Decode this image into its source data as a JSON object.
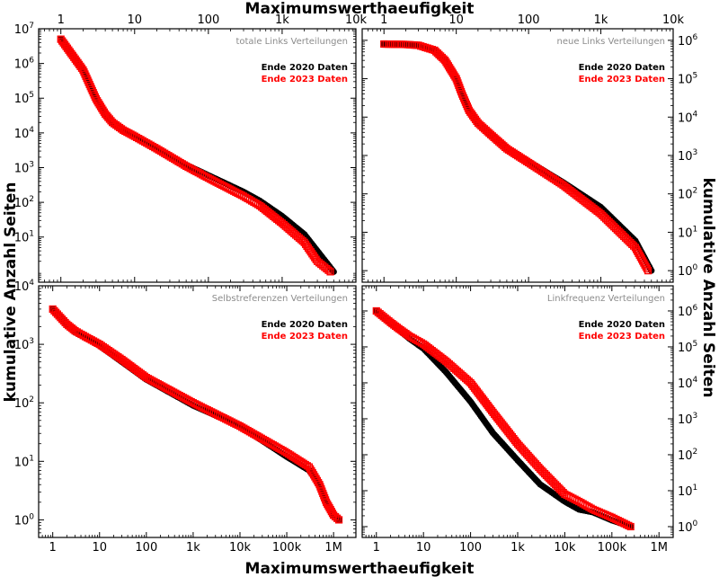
{
  "figure": {
    "x_axis_title_top": "Maximumswerthaeufigkeit",
    "x_axis_title_bottom": "Maximumswerthaeufigkeit",
    "y_axis_title_left": "kumulative Anzahl Seiten",
    "y_axis_title_right": "kumulative Anzahl Seiten",
    "colors": {
      "series_2020": "#000000",
      "series_2023": "#ff0000",
      "panel_title": "#8c8c8c"
    }
  },
  "chart_data": [
    {
      "type": "scatter",
      "title": "totale Links Verteilungen",
      "x_scale": "log",
      "y_scale": "log",
      "xlim": [
        0.5,
        10000
      ],
      "ylim": [
        0.5,
        10000000
      ],
      "x_ticks": [
        "1",
        "10",
        "100",
        "1k",
        "10k"
      ],
      "y_ticks": [
        "10^1",
        "10^2",
        "10^3",
        "10^4",
        "10^5",
        "10^6",
        "10^7"
      ],
      "legend": "top-right",
      "series": [
        {
          "name": "Ende 2020 Daten",
          "color": "#000000",
          "marker": "circle",
          "x": [
            1,
            2,
            3,
            4,
            5,
            7,
            10,
            20,
            50,
            100,
            300,
            500,
            1000,
            2000,
            3000,
            5000
          ],
          "y": [
            5000000,
            700000,
            100000,
            35000,
            20000,
            12000,
            8000,
            3500,
            1200,
            600,
            200,
            110,
            40,
            12,
            4,
            1
          ]
        },
        {
          "name": "Ende 2023 Daten",
          "color": "#ff0000",
          "marker": "square",
          "x": [
            1,
            2,
            3,
            4,
            5,
            7,
            10,
            20,
            50,
            100,
            300,
            500,
            1000,
            2000,
            3000,
            4500
          ],
          "y": [
            5000000,
            650000,
            95000,
            35000,
            20000,
            12000,
            8000,
            3500,
            1100,
            500,
            150,
            80,
            25,
            7,
            2,
            1
          ]
        }
      ]
    },
    {
      "type": "scatter",
      "title": "neue Links Verteilungen",
      "x_scale": "log",
      "y_scale": "log",
      "xlim": [
        0.5,
        10000
      ],
      "ylim": [
        0.5,
        2000000
      ],
      "x_ticks": [
        "1",
        "10",
        "100",
        "1k",
        "10k"
      ],
      "y_ticks": [
        "10^0",
        "10^1",
        "10^2",
        "10^3",
        "10^4",
        "10^5",
        "10^6"
      ],
      "legend": "top-right",
      "series": [
        {
          "name": "Ende 2020 Daten",
          "color": "#000000",
          "marker": "circle",
          "x": [
            1,
            2,
            3,
            5,
            7,
            10,
            12,
            15,
            20,
            30,
            50,
            100,
            300,
            1000,
            3000,
            5000
          ],
          "y": [
            800000,
            780000,
            740000,
            550000,
            300000,
            100000,
            40000,
            15000,
            7000,
            3500,
            1600,
            700,
            200,
            45,
            6,
            1
          ]
        },
        {
          "name": "Ende 2023 Daten",
          "color": "#ff0000",
          "marker": "square",
          "x": [
            1,
            2,
            3,
            5,
            7,
            10,
            12,
            15,
            20,
            30,
            50,
            100,
            300,
            1000,
            3000,
            4500
          ],
          "y": [
            800000,
            780000,
            740000,
            550000,
            300000,
            100000,
            40000,
            15000,
            7000,
            3500,
            1500,
            650,
            170,
            30,
            4,
            1
          ]
        }
      ]
    },
    {
      "type": "scatter",
      "title": "Selbstreferenzen Verteilungen",
      "x_scale": "log",
      "y_scale": "log",
      "xlim": [
        0.5,
        3000000
      ],
      "ylim": [
        0.5,
        10000
      ],
      "x_ticks": [
        "1",
        "10",
        "100",
        "1k",
        "10k",
        "100k",
        "1M"
      ],
      "y_ticks": [
        "10^0",
        "10^1",
        "10^2",
        "10^3",
        "10^4"
      ],
      "legend": "top-right",
      "series": [
        {
          "name": "Ende 2020 Daten",
          "color": "#000000",
          "marker": "circle",
          "x": [
            1,
            2,
            3,
            5,
            10,
            30,
            100,
            1000,
            10000,
            100000,
            300000,
            500000,
            700000,
            1000000,
            1300000
          ],
          "y": [
            4000,
            2200,
            1600,
            1300,
            950,
            500,
            250,
            90,
            40,
            12,
            7,
            4,
            2,
            1.2,
            1
          ]
        },
        {
          "name": "Ende 2023 Daten",
          "color": "#ff0000",
          "marker": "square",
          "x": [
            1,
            2,
            3,
            5,
            10,
            30,
            100,
            1000,
            10000,
            100000,
            300000,
            500000,
            700000,
            1000000,
            1300000
          ],
          "y": [
            4000,
            2200,
            1700,
            1350,
            1000,
            550,
            270,
            100,
            40,
            14,
            8,
            4,
            2,
            1.2,
            1
          ]
        }
      ]
    },
    {
      "type": "scatter",
      "title": "Linkfrequenz Verteilungen",
      "x_scale": "log",
      "y_scale": "log",
      "xlim": [
        0.5,
        2000000
      ],
      "ylim": [
        0.5,
        5000000
      ],
      "x_ticks": [
        "1",
        "10",
        "100",
        "1k",
        "10k",
        "100k",
        "1M"
      ],
      "y_ticks": [
        "10^0",
        "10^1",
        "10^2",
        "10^3",
        "10^4",
        "10^5",
        "10^6"
      ],
      "legend": "top-right",
      "series": [
        {
          "name": "Ende 2020 Daten",
          "color": "#000000",
          "marker": "circle",
          "x": [
            1,
            2,
            3,
            5,
            10,
            30,
            100,
            300,
            1000,
            3000,
            10000,
            20000,
            40000,
            100000,
            250000
          ],
          "y": [
            1000000,
            450000,
            300000,
            170000,
            90000,
            20000,
            3000,
            400,
            70,
            15,
            5,
            3,
            2.5,
            1.5,
            1
          ]
        },
        {
          "name": "Ende 2023 Daten",
          "color": "#ff0000",
          "marker": "square",
          "x": [
            1,
            2,
            3,
            5,
            10,
            30,
            100,
            300,
            1000,
            3000,
            10000,
            20000,
            40000,
            100000,
            250000
          ],
          "y": [
            1000000,
            480000,
            320000,
            200000,
            120000,
            40000,
            10000,
            1500,
            200,
            40,
            8,
            5,
            3,
            1.8,
            1
          ]
        }
      ]
    }
  ]
}
